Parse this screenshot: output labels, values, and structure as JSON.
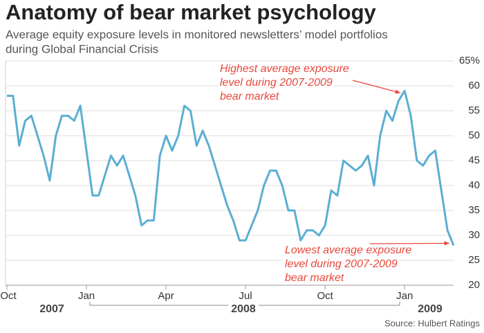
{
  "chart_data": {
    "type": "line",
    "title": "Anatomy of bear market psychology",
    "subtitle": [
      "Average equity exposure levels in monitored newsletters’  model portfolios",
      "during Global Financial Crisis"
    ],
    "categories": [
      "Oct",
      null,
      null,
      null,
      null,
      null,
      null,
      null,
      null,
      null,
      null,
      null,
      null,
      "Jan",
      null,
      null,
      null,
      null,
      null,
      null,
      null,
      null,
      null,
      null,
      null,
      null,
      "Apr",
      null,
      null,
      null,
      null,
      null,
      null,
      null,
      null,
      null,
      null,
      null,
      null,
      "Jul",
      null,
      null,
      null,
      null,
      null,
      null,
      null,
      null,
      null,
      null,
      null,
      null,
      "Oct",
      null,
      null,
      null,
      null,
      null,
      null,
      null,
      null,
      null,
      null,
      null,
      null,
      "Jan",
      null,
      null,
      null,
      null,
      null,
      null,
      null,
      null
    ],
    "years": [
      "2007",
      "2008",
      "2009"
    ],
    "series": [
      {
        "color": "#5aaed3",
        "values": [
          58,
          58,
          48,
          53,
          54,
          50,
          46,
          41,
          50,
          54,
          54,
          53,
          56,
          47,
          38,
          38,
          42,
          46,
          44,
          46,
          42,
          38,
          32,
          33,
          33,
          46,
          50,
          47,
          50,
          56,
          55,
          48,
          51,
          48,
          44,
          40,
          36,
          33,
          29,
          29,
          32,
          35,
          40,
          43,
          43,
          40,
          35,
          35,
          29,
          31,
          31,
          30,
          32,
          39,
          38,
          45,
          44,
          43,
          44,
          46,
          40,
          50,
          55,
          53,
          57,
          59,
          54,
          45,
          44,
          46,
          47,
          39,
          31,
          28
        ]
      }
    ],
    "ylim": [
      20,
      65
    ],
    "yticks": [
      20,
      25,
      30,
      35,
      40,
      45,
      50,
      55,
      {
        "value": 60,
        "label": "60"
      },
      {
        "value": 65,
        "label": "65%"
      }
    ],
    "grid": true,
    "annotations": [
      {
        "lines": [
          "Highest average exposure",
          "level during 2007-2009",
          "bear market"
        ],
        "index": 65
      },
      {
        "lines": [
          "Lowest average exposure",
          "level during 2007-2009",
          "bear market"
        ],
        "index": 73
      }
    ],
    "source": "Source: Hulbert Ratings"
  }
}
